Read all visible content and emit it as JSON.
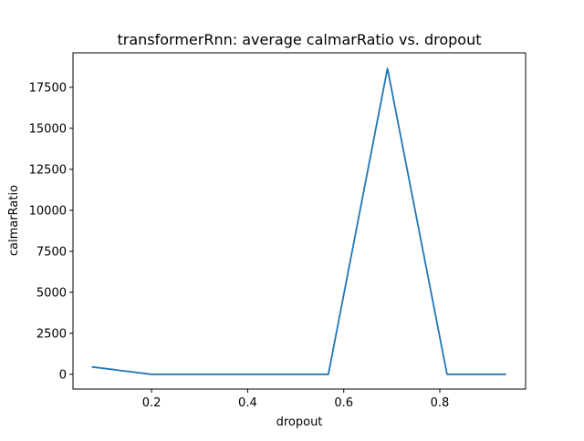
{
  "chart_data": {
    "type": "line",
    "title": "transformerRnn: average calmarRatio vs. dropout",
    "xlabel": "dropout",
    "ylabel": "calmarRatio",
    "xlim": [
      0.0365,
      0.9785
    ],
    "ylim": [
      -900,
      19600
    ],
    "xticks": [
      0.2,
      0.4,
      0.6,
      0.8
    ],
    "xtick_labels": [
      "0.2",
      "0.4",
      "0.6",
      "0.8"
    ],
    "yticks": [
      0,
      2500,
      5000,
      7500,
      10000,
      12500,
      15000,
      17500
    ],
    "ytick_labels": [
      "0",
      "2500",
      "5000",
      "7500",
      "10000",
      "12500",
      "15000",
      "17500"
    ],
    "grid": false,
    "series": [
      {
        "color": "#1f77b4",
        "x": [
          0.0755,
          0.2,
          0.32,
          0.445,
          0.568,
          0.691,
          0.815,
          0.938
        ],
        "y": [
          450,
          0,
          0,
          0,
          0,
          18650,
          0,
          0
        ]
      }
    ]
  }
}
